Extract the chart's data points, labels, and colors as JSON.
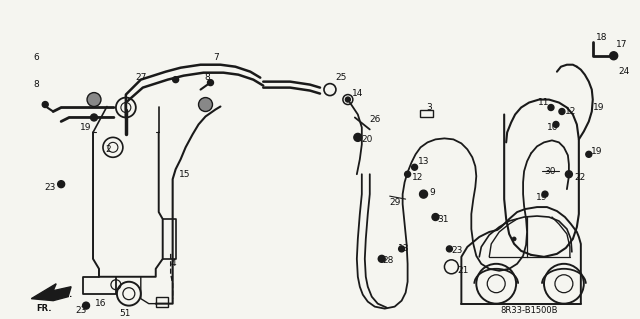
{
  "bg_color": "#f5f5f0",
  "line_color": "#1a1a1a",
  "label_color": "#111111",
  "diagram_code": "8R33-B1500B",
  "fig_width": 6.4,
  "fig_height": 3.19,
  "dpi": 100
}
